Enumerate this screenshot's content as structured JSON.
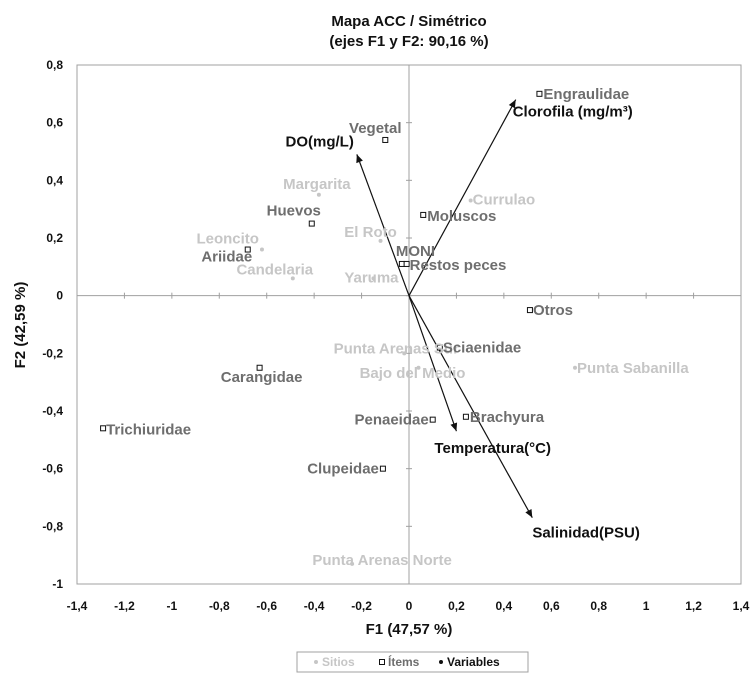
{
  "chart_data": {
    "type": "scatter",
    "title": "Mapa ACC / Simétrico",
    "subtitle": "(ejes F1 y F2: 90,16 %)",
    "xlabel": "F1 (47,57 %)",
    "ylabel": "F2 (42,59 %)",
    "xlim": [
      -1.4,
      1.4
    ],
    "ylim": [
      -1.0,
      0.8
    ],
    "xticks": [
      -1.4,
      -1.2,
      -1.0,
      -0.8,
      -0.6,
      -0.4,
      -0.2,
      0,
      0.2,
      0.4,
      0.6,
      0.8,
      1.0,
      1.2,
      1.4
    ],
    "xtick_labels": [
      "-1,4",
      "-1,2",
      "-1",
      "-0,8",
      "-0,6",
      "-0,4",
      "-0,2",
      "0",
      "0,2",
      "0,4",
      "0,6",
      "0,8",
      "1",
      "1,2",
      "1,4"
    ],
    "yticks": [
      -1.0,
      -0.8,
      -0.6,
      -0.4,
      -0.2,
      0,
      0.2,
      0.4,
      0.6,
      0.8
    ],
    "ytick_labels": [
      "-1",
      "-0,8",
      "-0,6",
      "-0,4",
      "-0,2",
      "0",
      "0,2",
      "0,4",
      "0,6",
      "0,8"
    ],
    "grid": false,
    "legend_position": "bottom",
    "colors": {
      "sitios": "#c6c6c6",
      "items": "#6e6e6e",
      "variables": "#111111",
      "frame": "#a0a0a0"
    },
    "series": [
      {
        "name": "Sitios",
        "marker": "dot",
        "points": [
          {
            "label": "Margarita",
            "x": -0.38,
            "y": 0.35
          },
          {
            "label": "Leoncito",
            "x": -0.62,
            "y": 0.16
          },
          {
            "label": "Candelaria",
            "x": -0.49,
            "y": 0.06
          },
          {
            "label": "El Roto",
            "x": -0.12,
            "y": 0.19
          },
          {
            "label": "Yaruma",
            "x": -0.15,
            "y": 0.06
          },
          {
            "label": "Currulao",
            "x": 0.26,
            "y": 0.33
          },
          {
            "label": "Punta Arenas Sur",
            "x": -0.02,
            "y": -0.2
          },
          {
            "label": "Bajo del Medio",
            "x": 0.04,
            "y": -0.25
          },
          {
            "label": "Punta Sabanilla",
            "x": 0.7,
            "y": -0.25
          },
          {
            "label": "Punta Arenas Norte",
            "x": -0.24,
            "y": -0.93
          }
        ]
      },
      {
        "name": "Ítems",
        "marker": "square",
        "points": [
          {
            "label": "Engraulidae",
            "x": 0.55,
            "y": 0.7
          },
          {
            "label": "Vegetal",
            "x": -0.1,
            "y": 0.54
          },
          {
            "label": "Huevos",
            "x": -0.41,
            "y": 0.25
          },
          {
            "label": "Moluscos",
            "x": 0.06,
            "y": 0.28
          },
          {
            "label": "Ariidae",
            "x": -0.68,
            "y": 0.16
          },
          {
            "label": "MONI",
            "x": -0.03,
            "y": 0.11
          },
          {
            "label": "Restos peces",
            "x": -0.01,
            "y": 0.11
          },
          {
            "label": "Otros",
            "x": 0.51,
            "y": -0.05
          },
          {
            "label": "Sciaenidae",
            "x": 0.13,
            "y": -0.18
          },
          {
            "label": "Carangidae",
            "x": -0.63,
            "y": -0.25
          },
          {
            "label": "Brachyura",
            "x": 0.24,
            "y": -0.42
          },
          {
            "label": "Penaeidae",
            "x": 0.1,
            "y": -0.43
          },
          {
            "label": "Trichiuridae",
            "x": -1.29,
            "y": -0.46
          },
          {
            "label": "Clupeidae",
            "x": -0.11,
            "y": -0.6
          }
        ]
      },
      {
        "name": "Variables",
        "marker": "arrow",
        "points": [
          {
            "label": "Clorofila (mg/m³)",
            "x": 0.45,
            "y": 0.68
          },
          {
            "label": "DO(mg/L)",
            "x": -0.22,
            "y": 0.49
          },
          {
            "label": "Temperatura(°C)",
            "x": 0.2,
            "y": -0.47
          },
          {
            "label": "Salinidad(PSU)",
            "x": 0.52,
            "y": -0.77
          }
        ]
      }
    ]
  }
}
